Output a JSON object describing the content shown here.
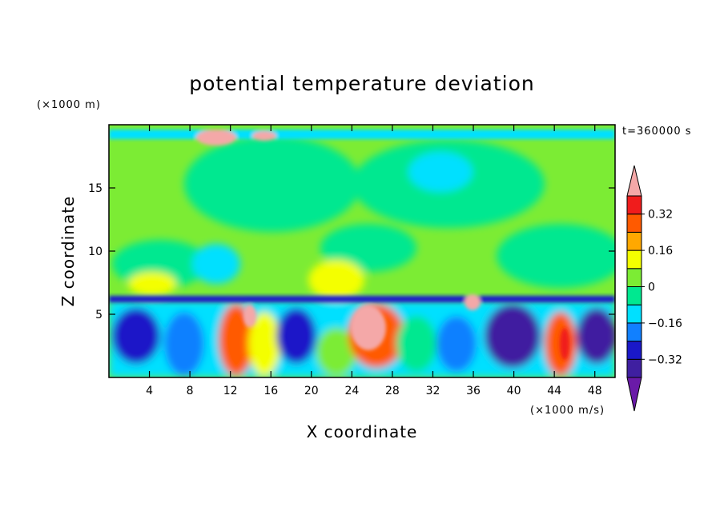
{
  "chart_data": {
    "type": "heatmap",
    "title": "potential temperature deviation",
    "xlabel": "X coordinate",
    "ylabel": "Z coordinate",
    "x_unit": "(×1000 m/s)",
    "y_unit": "(×1000 m)",
    "time_label": "t=360000 s",
    "xlim": [
      0,
      50
    ],
    "ylim": [
      0,
      20
    ],
    "x_ticks": [
      4,
      8,
      12,
      16,
      20,
      24,
      28,
      32,
      36,
      40,
      44,
      48
    ],
    "y_ticks": [
      5,
      10,
      15
    ],
    "colorbar": {
      "levels": [
        -0.4,
        -0.32,
        -0.24,
        -0.16,
        -0.08,
        0,
        0.08,
        0.16,
        0.24,
        0.32,
        0.4
      ],
      "labeled_levels": [
        {
          "value": 0.32,
          "label": "0.32"
        },
        {
          "value": 0.16,
          "label": "0.16"
        },
        {
          "value": 0,
          "label": "0"
        },
        {
          "value": -0.16,
          "label": "−0.16"
        },
        {
          "value": -0.32,
          "label": "−0.32"
        }
      ],
      "colors": [
        "#6a1aa8",
        "#3f1fa0",
        "#1a18c8",
        "#1180ff",
        "#00e0ff",
        "#00e890",
        "#7cec34",
        "#f4ff00",
        "#ffa800",
        "#ff5a00",
        "#f01c1c",
        "#f4a8a8"
      ]
    },
    "grid": false,
    "legend": "colorbar right"
  }
}
